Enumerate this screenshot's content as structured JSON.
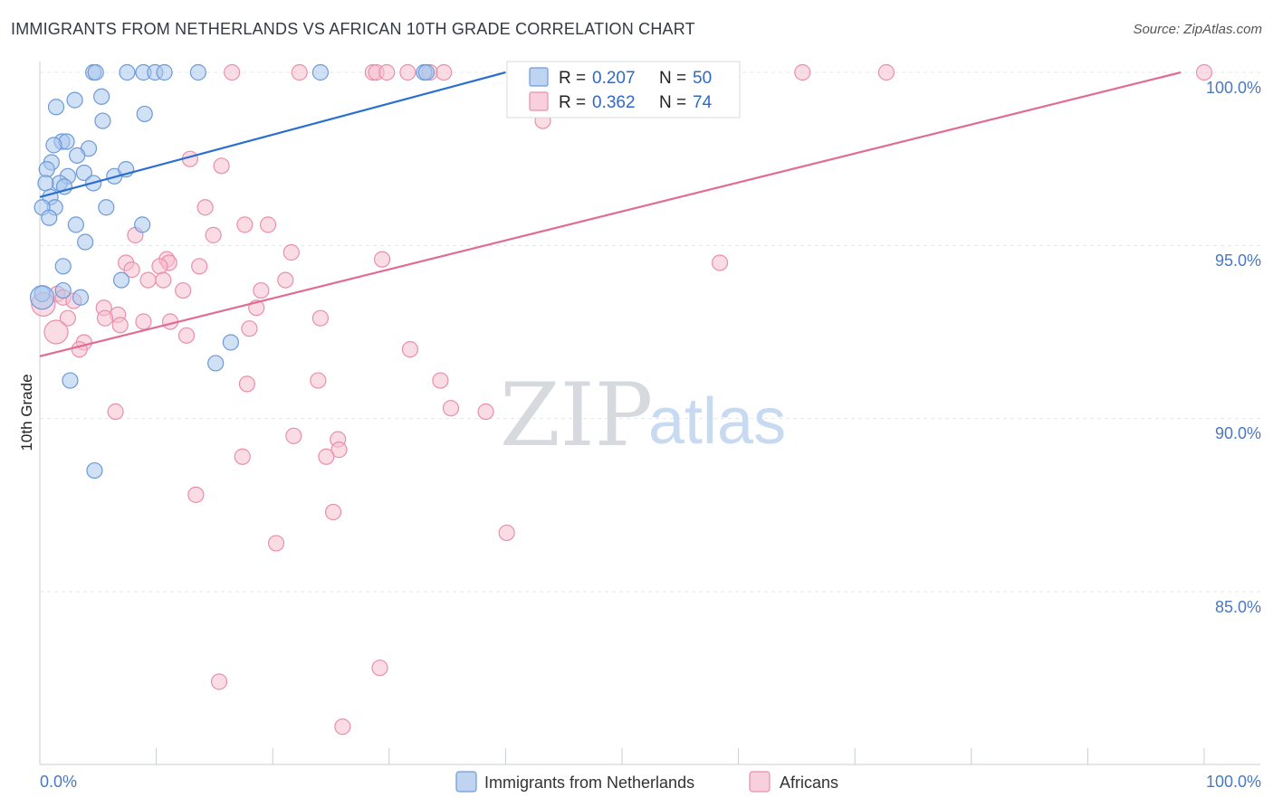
{
  "title": "IMMIGRANTS FROM NETHERLANDS VS AFRICAN 10TH GRADE CORRELATION CHART",
  "source": "Source: ZipAtlas.com",
  "watermark": {
    "zip": "ZIP",
    "atlas": "atlas"
  },
  "colors": {
    "blue_fill": "#a9c6ec",
    "blue_stroke": "#6d9ad8",
    "blue_line": "#2a6fcf",
    "pink_fill": "#f5bfd0",
    "pink_stroke": "#e98fac",
    "pink_line": "#e06b94",
    "grid": "#e3e6ea",
    "axis": "#c8ccd2",
    "tick_text": "#4a78c2"
  },
  "chart_data": {
    "type": "scatter",
    "title": "IMMIGRANTS FROM NETHERLANDS VS AFRICAN 10TH GRADE CORRELATION CHART",
    "xlabel": "",
    "ylabel": "10th Grade",
    "xlim": [
      0,
      100
    ],
    "ylim": [
      80.0,
      100.8
    ],
    "x_tick_labels": [
      "0.0%",
      "100.0%"
    ],
    "y_ticks": [
      85.0,
      90.0,
      95.0,
      100.0
    ],
    "y_tick_labels": [
      "85.0%",
      "90.0%",
      "95.0%",
      "100.0%"
    ],
    "legend": {
      "r_label": "R =",
      "n_label": "N =",
      "entries": [
        {
          "name": "Immigrants from Netherlands",
          "r": "0.207",
          "n": "50"
        },
        {
          "name": "Africans",
          "r": "0.362",
          "n": "74"
        }
      ]
    },
    "series": [
      {
        "name": "Immigrants from Netherlands",
        "color": "blue",
        "trend": {
          "x0": 0,
          "y0": 96.4,
          "x1": 40.0,
          "y1": 100.0
        },
        "points": [
          [
            4.6,
            100
          ],
          [
            4.8,
            100
          ],
          [
            7.5,
            100
          ],
          [
            8.9,
            100
          ],
          [
            9.9,
            100
          ],
          [
            10.7,
            100
          ],
          [
            13.6,
            100
          ],
          [
            24.1,
            100
          ],
          [
            33.0,
            100
          ],
          [
            33.2,
            100
          ],
          [
            1.4,
            99.0
          ],
          [
            3.0,
            99.2
          ],
          [
            5.3,
            99.3
          ],
          [
            9.0,
            98.8
          ],
          [
            5.4,
            98.6
          ],
          [
            1.9,
            98.0
          ],
          [
            2.3,
            98.0
          ],
          [
            4.2,
            97.8
          ],
          [
            1.2,
            97.9
          ],
          [
            3.2,
            97.6
          ],
          [
            1.0,
            97.4
          ],
          [
            0.6,
            97.2
          ],
          [
            3.8,
            97.1
          ],
          [
            2.4,
            97.0
          ],
          [
            6.4,
            97.0
          ],
          [
            7.4,
            97.2
          ],
          [
            1.7,
            96.8
          ],
          [
            2.1,
            96.7
          ],
          [
            0.5,
            96.8
          ],
          [
            4.6,
            96.8
          ],
          [
            0.9,
            96.4
          ],
          [
            1.3,
            96.1
          ],
          [
            0.2,
            96.1
          ],
          [
            5.7,
            96.1
          ],
          [
            0.8,
            95.8
          ],
          [
            3.1,
            95.6
          ],
          [
            8.8,
            95.6
          ],
          [
            3.9,
            95.1
          ],
          [
            2.0,
            94.4
          ],
          [
            7.0,
            94.0
          ],
          [
            2.0,
            93.7
          ],
          [
            3.5,
            93.5
          ],
          [
            0.2,
            93.6
          ],
          [
            16.4,
            92.2
          ],
          [
            15.1,
            91.6
          ],
          [
            2.6,
            91.1
          ],
          [
            4.7,
            88.5
          ]
        ],
        "large_points": [
          [
            0.2,
            93.5
          ]
        ]
      },
      {
        "name": "Africans",
        "color": "pink",
        "trend": {
          "x0": 0,
          "y0": 91.8,
          "x1": 98.0,
          "y1": 100.0
        },
        "points": [
          [
            16.5,
            100
          ],
          [
            22.3,
            100
          ],
          [
            28.6,
            100
          ],
          [
            28.9,
            100
          ],
          [
            29.8,
            100
          ],
          [
            31.6,
            100
          ],
          [
            33.5,
            100
          ],
          [
            52.1,
            100
          ],
          [
            65.5,
            100
          ],
          [
            72.7,
            100
          ],
          [
            100.0,
            100
          ],
          [
            34.7,
            100
          ],
          [
            52.0,
            99.1
          ],
          [
            53.0,
            99.1
          ],
          [
            43.2,
            98.6
          ],
          [
            12.9,
            97.5
          ],
          [
            15.6,
            97.3
          ],
          [
            14.2,
            96.1
          ],
          [
            17.6,
            95.6
          ],
          [
            19.6,
            95.6
          ],
          [
            14.9,
            95.3
          ],
          [
            8.2,
            95.3
          ],
          [
            21.6,
            94.8
          ],
          [
            10.9,
            94.6
          ],
          [
            7.4,
            94.5
          ],
          [
            11.1,
            94.5
          ],
          [
            10.3,
            94.4
          ],
          [
            13.7,
            94.4
          ],
          [
            29.4,
            94.6
          ],
          [
            58.4,
            94.5
          ],
          [
            7.9,
            94.3
          ],
          [
            9.3,
            94.0
          ],
          [
            10.6,
            94.0
          ],
          [
            21.1,
            94.0
          ],
          [
            12.3,
            93.7
          ],
          [
            19.0,
            93.7
          ],
          [
            18.6,
            93.2
          ],
          [
            1.5,
            93.6
          ],
          [
            2.0,
            93.5
          ],
          [
            2.9,
            93.4
          ],
          [
            5.5,
            93.2
          ],
          [
            6.7,
            93.0
          ],
          [
            5.6,
            92.9
          ],
          [
            6.9,
            92.7
          ],
          [
            8.9,
            92.8
          ],
          [
            11.2,
            92.8
          ],
          [
            24.1,
            92.9
          ],
          [
            2.4,
            92.9
          ],
          [
            12.6,
            92.4
          ],
          [
            18.0,
            92.6
          ],
          [
            3.8,
            92.2
          ],
          [
            3.4,
            92.0
          ],
          [
            31.8,
            92.0
          ],
          [
            34.4,
            91.1
          ],
          [
            23.9,
            91.1
          ],
          [
            17.8,
            91.0
          ],
          [
            6.5,
            90.2
          ],
          [
            35.3,
            90.3
          ],
          [
            38.3,
            90.2
          ],
          [
            21.8,
            89.5
          ],
          [
            25.6,
            89.4
          ],
          [
            25.7,
            89.1
          ],
          [
            17.4,
            88.9
          ],
          [
            24.6,
            88.9
          ],
          [
            13.4,
            87.8
          ],
          [
            25.2,
            87.3
          ],
          [
            40.1,
            86.7
          ],
          [
            20.3,
            86.4
          ],
          [
            29.2,
            82.8
          ],
          [
            15.4,
            82.4
          ],
          [
            26.0,
            81.1
          ]
        ],
        "large_points": [
          [
            0.3,
            93.3
          ],
          [
            1.4,
            92.5
          ]
        ]
      }
    ]
  }
}
